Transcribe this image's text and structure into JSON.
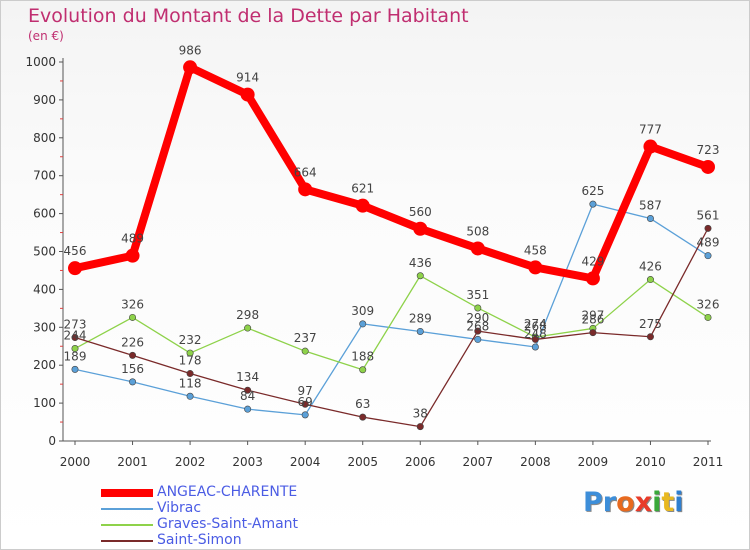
{
  "title": "Evolution du Montant de la Dette par Habitant",
  "unit": "(en €)",
  "logo": {
    "text": "Proxiti",
    "letter_colors": [
      "#3d8ed9",
      "#3d8ed9",
      "#e86a1f",
      "#e83b2a",
      "#3aa83a",
      "#e8b820",
      "#2f7fd0"
    ]
  },
  "chart_data": {
    "type": "line",
    "x": [
      "2000",
      "2001",
      "2002",
      "2003",
      "2004",
      "2005",
      "2006",
      "2007",
      "2008",
      "2009",
      "2010",
      "2011"
    ],
    "ylim": [
      0,
      1000
    ],
    "yticks": [
      0,
      100,
      200,
      300,
      400,
      500,
      600,
      700,
      800,
      900,
      1000
    ],
    "grid": false,
    "legend_position": "bottom-left",
    "series": [
      {
        "name": "ANGEAC-CHARENTE",
        "color": "#ff0000",
        "values": [
          456,
          489,
          986,
          914,
          664,
          621,
          560,
          508,
          458,
          429,
          777,
          723
        ]
      },
      {
        "name": "Vibrac",
        "color": "#5ba0d8",
        "values": [
          189,
          156,
          118,
          84,
          69,
          309,
          289,
          268,
          248,
          625,
          587,
          489
        ]
      },
      {
        "name": "Graves-Saint-Amant",
        "color": "#8ed24a",
        "values": [
          244,
          326,
          232,
          298,
          237,
          188,
          436,
          351,
          274,
          297,
          426,
          326
        ]
      },
      {
        "name": "Saint-Simon",
        "color": "#7a2a2a",
        "values": [
          273,
          226,
          178,
          134,
          97,
          63,
          38,
          290,
          268,
          286,
          275,
          561
        ]
      }
    ]
  }
}
